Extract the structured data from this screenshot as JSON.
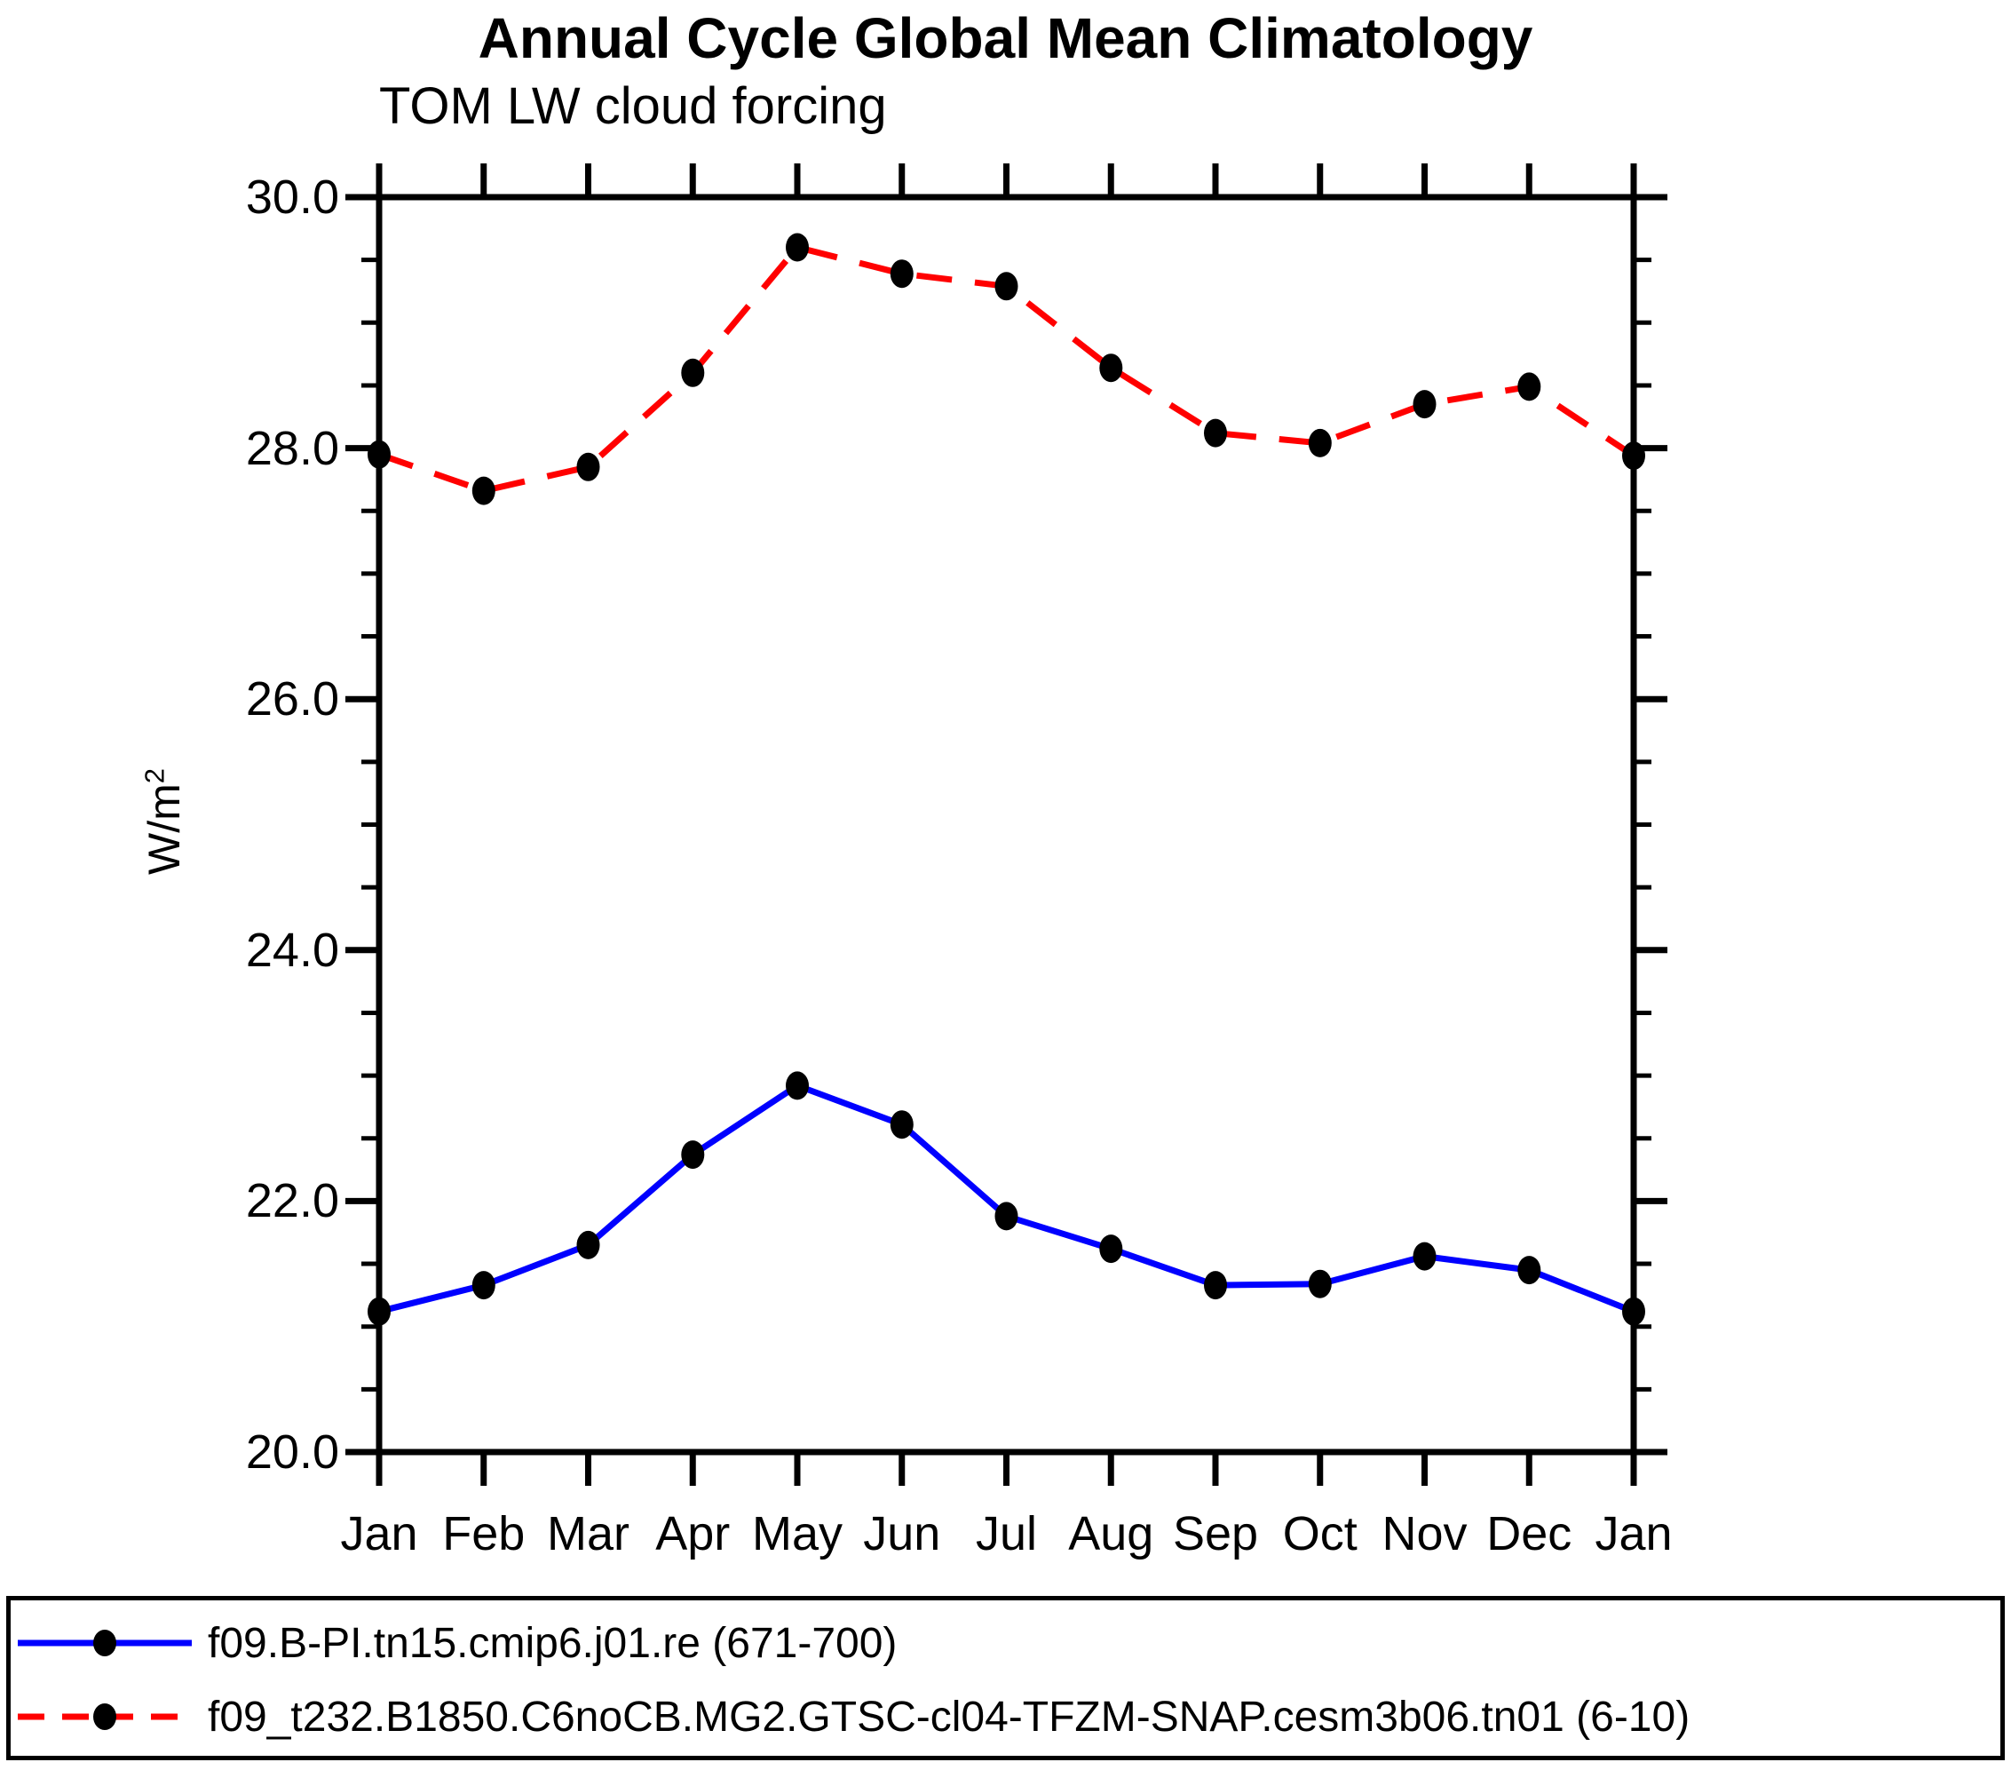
{
  "chart_data": {
    "type": "line",
    "title": "Annual Cycle Global Mean Climatology",
    "subtitle": "TOM LW cloud forcing",
    "ylabel": "W/m²",
    "ylabel_base": "W/m",
    "ylabel_sup": "2",
    "categories": [
      "Jan",
      "Feb",
      "Mar",
      "Apr",
      "May",
      "Jun",
      "Jul",
      "Aug",
      "Sep",
      "Oct",
      "Nov",
      "Dec",
      "Jan"
    ],
    "ylim": [
      20.0,
      30.0
    ],
    "ytick_major": [
      20.0,
      22.0,
      24.0,
      26.0,
      28.0,
      30.0
    ],
    "ytick_labels": [
      "20.0",
      "22.0",
      "24.0",
      "26.0",
      "28.0",
      "30.0"
    ],
    "ytick_minor_step": 0.5,
    "grid": false,
    "legend_position": "bottom",
    "axis_color": "#000000",
    "series": [
      {
        "name": "f09.B-PI.tn15.cmip6.j01.re (671-700)",
        "color": "#0000ff",
        "line_style": "solid",
        "marker": "filled-circle",
        "marker_color": "#000000",
        "values": [
          21.12,
          21.33,
          21.65,
          22.37,
          22.92,
          22.61,
          21.88,
          21.62,
          21.33,
          21.34,
          21.56,
          21.45,
          21.12
        ]
      },
      {
        "name": "f09_t232.B1850.C6noCB.MG2.GTSC-cl04-TFZM-SNAP.cesm3b06.tn01 (6-10)",
        "color": "#ff0000",
        "line_style": "dashed",
        "marker": "filled-circle",
        "marker_color": "#000000",
        "values": [
          27.95,
          27.66,
          27.85,
          28.6,
          29.6,
          29.39,
          29.29,
          28.64,
          28.12,
          28.04,
          28.35,
          28.49,
          27.94
        ]
      }
    ],
    "legend": {
      "entries": [
        {
          "label": "f09.B-PI.tn15.cmip6.j01.re (671-700)",
          "color": "#0000ff",
          "line_style": "solid"
        },
        {
          "label": "f09_t232.B1850.C6noCB.MG2.GTSC-cl04-TFZM-SNAP.cesm3b06.tn01 (6-10)",
          "color": "#ff0000",
          "line_style": "dashed"
        }
      ]
    }
  }
}
